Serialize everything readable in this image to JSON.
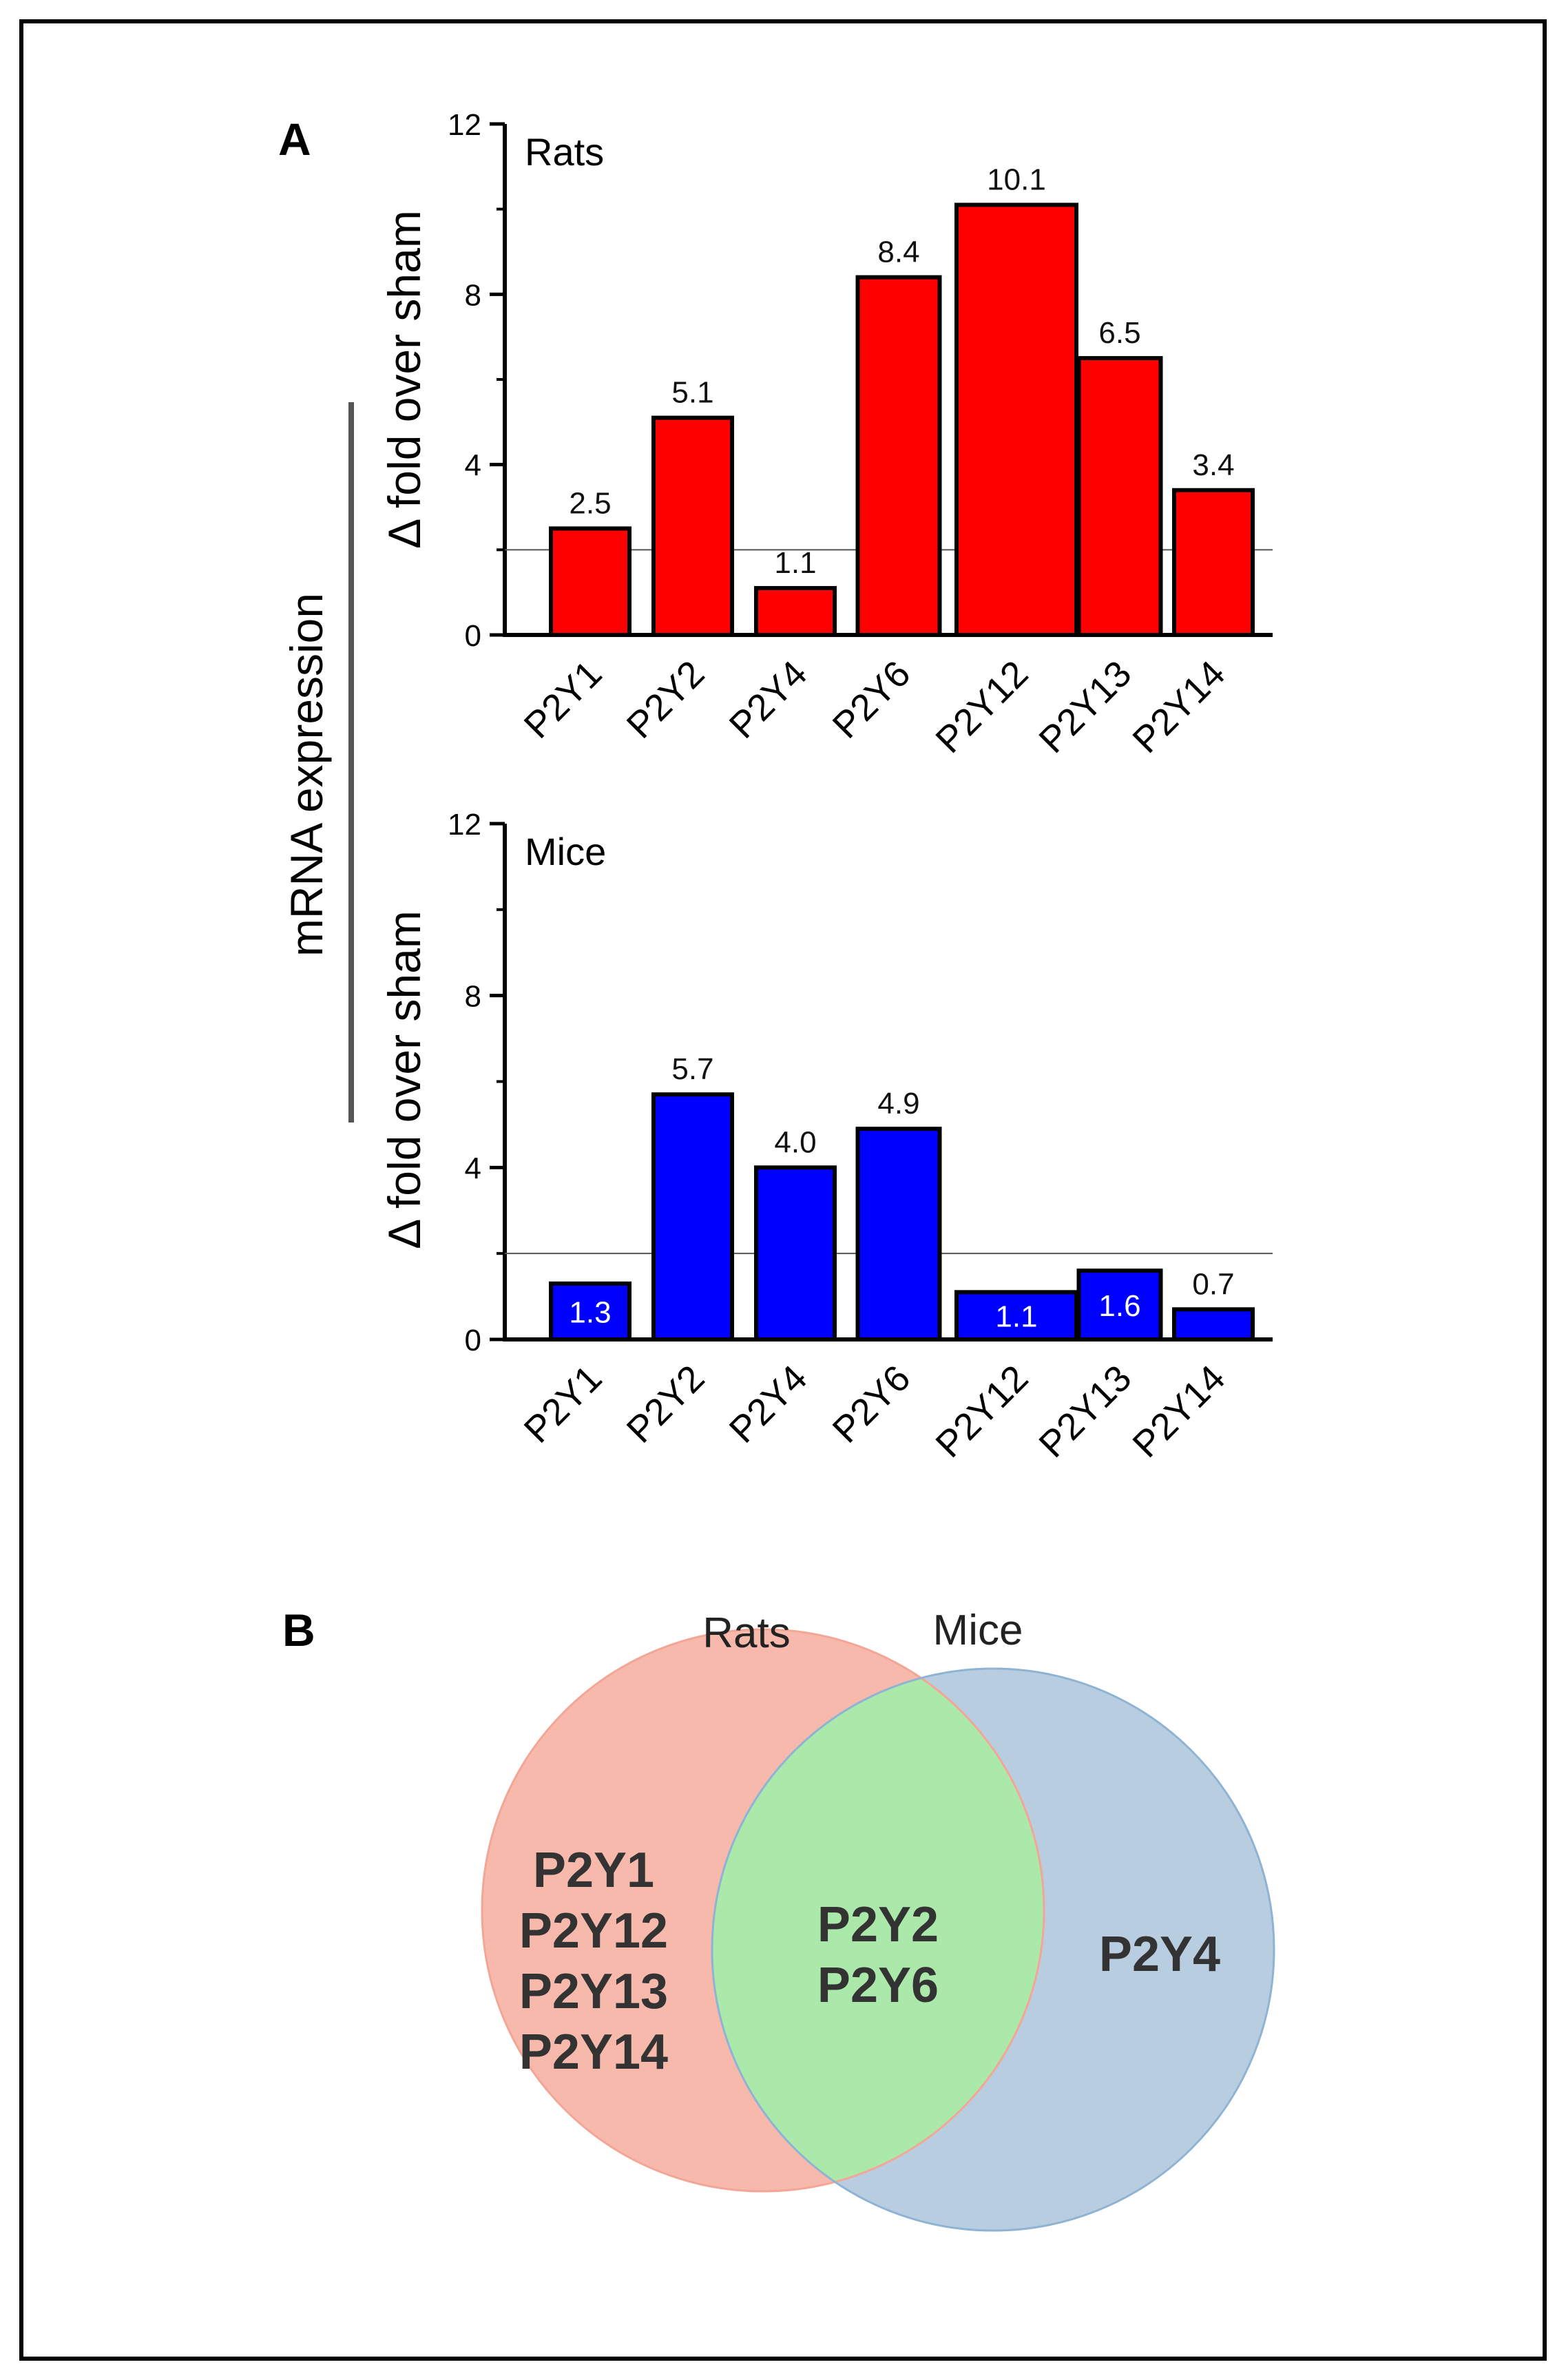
{
  "figure": {
    "panel_a_label": "A",
    "panel_b_label": "B",
    "shared_ylabel": "mRNA expression"
  },
  "chart_data": [
    {
      "type": "bar",
      "title": "Rats",
      "xlabel": "",
      "ylabel": "Δ fold over sham",
      "categories": [
        "P2Y1",
        "P2Y2",
        "P2Y4",
        "P2Y6",
        "P2Y12",
        "P2Y13",
        "P2Y14"
      ],
      "values": [
        2.5,
        5.1,
        1.1,
        8.4,
        10.1,
        6.5,
        3.4
      ],
      "data_labels": [
        "2.5",
        "5.1",
        "1.1",
        "8.4",
        "10.1",
        "6.5",
        "3.4"
      ],
      "label_position": "above",
      "ylim": [
        0,
        12
      ],
      "yticks": [
        0,
        4,
        8,
        12
      ],
      "reference_line": 2,
      "bar_color": "#ff0000",
      "label_color": "#111111",
      "grid": false
    },
    {
      "type": "bar",
      "title": "Mice",
      "xlabel": "",
      "ylabel": "Δ fold over sham",
      "categories": [
        "P2Y1",
        "P2Y2",
        "P2Y4",
        "P2Y6",
        "P2Y12",
        "P2Y13",
        "P2Y14"
      ],
      "values": [
        1.3,
        5.7,
        4.0,
        4.9,
        1.1,
        1.6,
        0.7
      ],
      "data_labels": [
        "1.3",
        "5.7",
        "4.0",
        "4.9",
        "1.1",
        "1.6",
        "0.7"
      ],
      "label_position": [
        "inside",
        "above",
        "above",
        "above",
        "inside",
        "inside",
        "above"
      ],
      "ylim": [
        0,
        12
      ],
      "yticks": [
        0,
        4,
        8,
        12
      ],
      "reference_line": 2,
      "bar_color": "#0000ff",
      "label_color": "#111111",
      "inside_label_color": "#ffffff",
      "grid": false
    }
  ],
  "venn": {
    "left_title": "Rats",
    "right_title": "Mice",
    "left_only": [
      "P2Y1",
      "P2Y12",
      "P2Y13",
      "P2Y14"
    ],
    "overlap": [
      "P2Y2",
      "P2Y6"
    ],
    "right_only": [
      "P2Y4"
    ],
    "left_color": "#f6b9ab",
    "right_color": "#b8cde0",
    "overlap_color": "#abe9aa",
    "left_stroke": "#f3a596",
    "right_stroke": "#8fb3d3",
    "text_color": "#333333"
  }
}
